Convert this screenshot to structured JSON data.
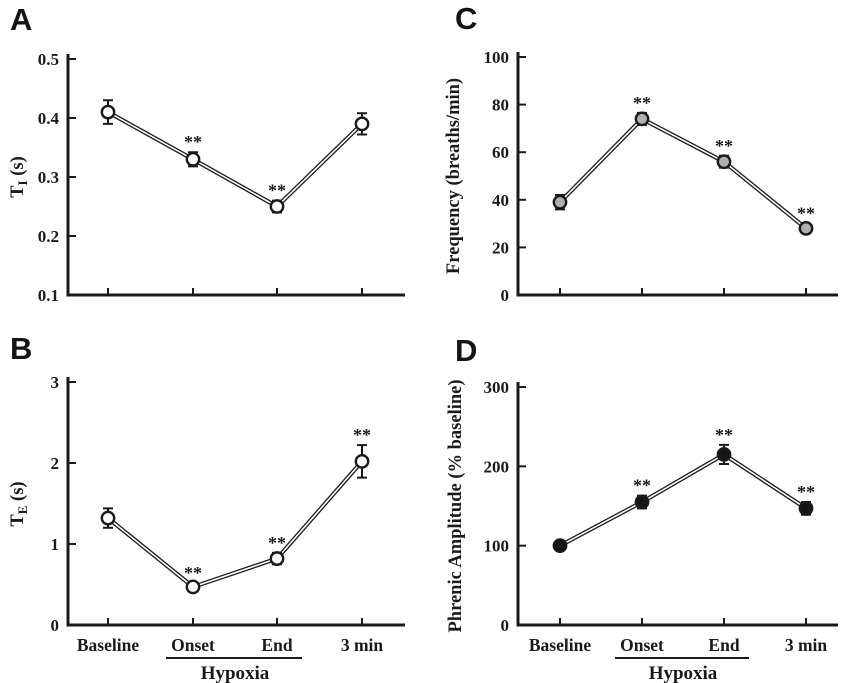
{
  "page": {
    "background": "#ffffff"
  },
  "colors": {
    "axis": "#1a1a1a",
    "text": "#1a1a1a",
    "line_outline": "#1a1a1a",
    "line_core": "#ffffff"
  },
  "chart_data": [
    {
      "type": "line",
      "panel": "A",
      "title": "",
      "ylabel": "T_I (s)",
      "ylabel_parts": {
        "pre": "T",
        "sub": "I",
        "post": " (s)"
      },
      "categories": [
        "Baseline",
        "Onset",
        "End",
        "3 min"
      ],
      "values": [
        0.41,
        0.33,
        0.25,
        0.39
      ],
      "errors": [
        0.02,
        0.012,
        0.01,
        0.018
      ],
      "significance": [
        "",
        "**",
        "**",
        ""
      ],
      "ylim": [
        0.1,
        0.5
      ],
      "yticks": [
        0.1,
        0.2,
        0.3,
        0.4,
        0.5
      ],
      "ytick_labels": [
        "0.1",
        "0.2",
        "0.3",
        "0.4",
        "0.5"
      ],
      "marker": "open-circle",
      "marker_fill": "#ffffff",
      "show_x_labels": false,
      "group_label": null
    },
    {
      "type": "line",
      "panel": "B",
      "title": "",
      "ylabel": "T_E (s)",
      "ylabel_parts": {
        "pre": "T",
        "sub": "E",
        "post": " (s)"
      },
      "categories": [
        "Baseline",
        "Onset",
        "End",
        "3 min"
      ],
      "values": [
        1.32,
        0.47,
        0.82,
        2.02
      ],
      "errors": [
        0.12,
        0.05,
        0.07,
        0.2
      ],
      "significance": [
        "",
        "**",
        "**",
        "**"
      ],
      "ylim": [
        0,
        3
      ],
      "yticks": [
        0,
        1,
        2,
        3
      ],
      "ytick_labels": [
        "0",
        "1",
        "2",
        "3"
      ],
      "marker": "open-circle",
      "marker_fill": "#ffffff",
      "show_x_labels": true,
      "group_label": {
        "text": "Hypoxia",
        "spans": [
          "Onset",
          "End"
        ]
      }
    },
    {
      "type": "line",
      "panel": "C",
      "title": "",
      "ylabel": "Frequency (breaths/min)",
      "ylabel_parts": {
        "pre": "Frequency (breaths/min)",
        "sub": "",
        "post": ""
      },
      "categories": [
        "Baseline",
        "Onset",
        "End",
        "3 min"
      ],
      "values": [
        39,
        74,
        56,
        28
      ],
      "errors": [
        3,
        2.5,
        2.5,
        2
      ],
      "significance": [
        "",
        "**",
        "**",
        "**"
      ],
      "ylim": [
        0,
        100
      ],
      "yticks": [
        0,
        20,
        40,
        60,
        80,
        100
      ],
      "ytick_labels": [
        "0",
        "20",
        "40",
        "60",
        "80",
        "100"
      ],
      "marker": "gray-circle",
      "marker_fill": "#b0b0b0",
      "show_x_labels": false,
      "group_label": null
    },
    {
      "type": "line",
      "panel": "D",
      "title": "",
      "ylabel": "Phrenic Amplitude (% baseline)",
      "ylabel_parts": {
        "pre": "Phrenic Amplitude (% baseline)",
        "sub": "",
        "post": ""
      },
      "categories": [
        "Baseline",
        "Onset",
        "End",
        "3 min"
      ],
      "values": [
        100,
        155,
        215,
        147
      ],
      "errors": [
        0,
        8,
        12,
        8
      ],
      "significance": [
        "",
        "**",
        "**",
        "**"
      ],
      "ylim": [
        0,
        300
      ],
      "yticks": [
        0,
        100,
        200,
        300
      ],
      "ytick_labels": [
        "0",
        "100",
        "200",
        "300"
      ],
      "marker": "filled-circle",
      "marker_fill": "#151515",
      "show_x_labels": true,
      "group_label": {
        "text": "Hypoxia",
        "spans": [
          "Onset",
          "End"
        ]
      }
    }
  ]
}
